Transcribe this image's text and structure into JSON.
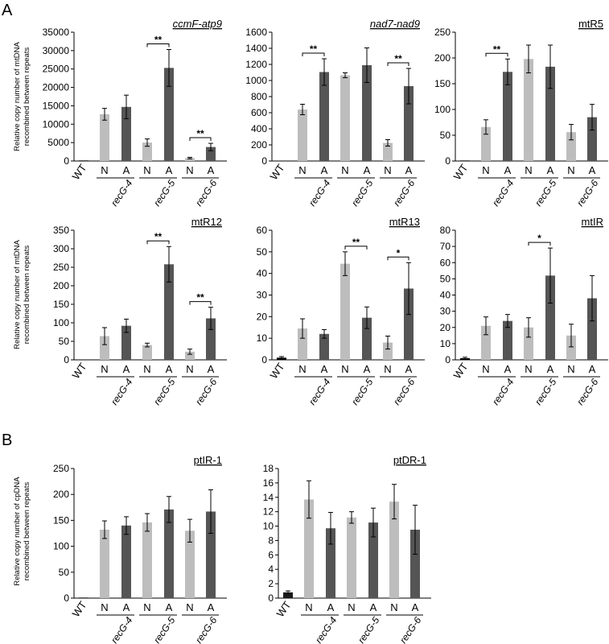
{
  "figure": {
    "panel_labels": [
      "A",
      "B"
    ],
    "ylabels": {
      "mt": [
        "Relative copy number of mtDNA",
        "recombined between repeats"
      ],
      "cp": [
        "Relative copy number of cpDNA",
        "recombined between repeats"
      ]
    },
    "colors": {
      "wt": "#000000",
      "wt_dark": "#1a1a1a",
      "n": "#bdbdbd",
      "a": "#555555"
    }
  },
  "chart_data": [
    {
      "type": "bar",
      "title": "ccmF-atp9",
      "title_italic": true,
      "categories": [
        "WT",
        "N",
        "A",
        "N",
        "A",
        "N",
        "A"
      ],
      "groups": [
        "recG-4",
        "recG-5",
        "recG-6"
      ],
      "values": [
        150,
        12700,
        14700,
        5000,
        25300,
        800,
        3800
      ],
      "errors": [
        0,
        1600,
        3200,
        1000,
        5000,
        200,
        1000
      ],
      "ylim": [
        0,
        35000
      ],
      "yticks": [
        0,
        5000,
        10000,
        15000,
        20000,
        25000,
        30000,
        35000
      ],
      "significance": [
        {
          "from": 3,
          "to": 4,
          "label": "**"
        },
        {
          "from": 5,
          "to": 6,
          "label": "**"
        }
      ]
    },
    {
      "type": "bar",
      "title": "nad7-nad9",
      "title_italic": true,
      "categories": [
        "WT",
        "N",
        "A",
        "N",
        "A",
        "N",
        "A"
      ],
      "groups": [
        "recG-4",
        "recG-5",
        "recG-6"
      ],
      "values": [
        5,
        640,
        1105,
        1065,
        1190,
        225,
        930
      ],
      "errors": [
        0,
        65,
        165,
        30,
        215,
        40,
        220
      ],
      "ylim": [
        0,
        1600
      ],
      "yticks": [
        0,
        200,
        400,
        600,
        800,
        1000,
        1200,
        1400,
        1600
      ],
      "significance": [
        {
          "from": 1,
          "to": 2,
          "label": "**"
        },
        {
          "from": 5,
          "to": 6,
          "label": "**"
        }
      ]
    },
    {
      "type": "bar",
      "title": "mtR5",
      "title_italic": false,
      "categories": [
        "WT",
        "N",
        "A",
        "N",
        "A",
        "N",
        "A"
      ],
      "groups": [
        "recG-4",
        "recG-5",
        "recG-6"
      ],
      "values": [
        1,
        66,
        173,
        198,
        183,
        56,
        85
      ],
      "errors": [
        0,
        14,
        25,
        27,
        42,
        15,
        25
      ],
      "ylim": [
        0,
        250
      ],
      "yticks": [
        0,
        50,
        100,
        150,
        200,
        250
      ],
      "significance": [
        {
          "from": 1,
          "to": 2,
          "label": "**"
        }
      ]
    },
    {
      "type": "bar",
      "title": "mtR12",
      "title_italic": false,
      "categories": [
        "WT",
        "N",
        "A",
        "N",
        "A",
        "N",
        "A"
      ],
      "groups": [
        "recG-4",
        "recG-5",
        "recG-6"
      ],
      "values": [
        1,
        64,
        92,
        40,
        258,
        22,
        112
      ],
      "errors": [
        0,
        23,
        18,
        5,
        48,
        7,
        30
      ],
      "ylim": [
        0,
        350
      ],
      "yticks": [
        0,
        50,
        100,
        150,
        200,
        250,
        300,
        350
      ],
      "significance": [
        {
          "from": 3,
          "to": 4,
          "label": "**"
        },
        {
          "from": 5,
          "to": 6,
          "label": "**"
        }
      ]
    },
    {
      "type": "bar",
      "title": "mtR13",
      "title_italic": false,
      "categories": [
        "WT",
        "N",
        "A",
        "N",
        "A",
        "N",
        "A"
      ],
      "groups": [
        "recG-4",
        "recG-5",
        "recG-6"
      ],
      "values": [
        1,
        14.5,
        12,
        44.5,
        19.5,
        8,
        33
      ],
      "errors": [
        0.5,
        4.5,
        2,
        5.5,
        5,
        3,
        12
      ],
      "ylim": [
        0,
        60
      ],
      "yticks": [
        0,
        10,
        20,
        30,
        40,
        50,
        60
      ],
      "significance": [
        {
          "from": 3,
          "to": 4,
          "label": "**"
        },
        {
          "from": 5,
          "to": 6,
          "label": "*"
        }
      ]
    },
    {
      "type": "bar",
      "title": "mtIR",
      "title_italic": false,
      "categories": [
        "WT",
        "N",
        "A",
        "N",
        "A",
        "N",
        "A"
      ],
      "groups": [
        "recG-4",
        "recG-5",
        "recG-6"
      ],
      "values": [
        1,
        21,
        24,
        20,
        52,
        15,
        38
      ],
      "errors": [
        0.6,
        5.5,
        4,
        6,
        17,
        7,
        14
      ],
      "ylim": [
        0,
        80
      ],
      "yticks": [
        0,
        10,
        20,
        30,
        40,
        50,
        60,
        70,
        80
      ],
      "significance": [
        {
          "from": 3,
          "to": 4,
          "label": "*"
        }
      ]
    },
    {
      "type": "bar",
      "title": "ptIR-1",
      "title_italic": false,
      "categories": [
        "WT",
        "N",
        "A",
        "N",
        "A",
        "N",
        "A"
      ],
      "groups": [
        "recG-4",
        "recG-5",
        "recG-6"
      ],
      "values": [
        1,
        132,
        140,
        146,
        171,
        130,
        167
      ],
      "errors": [
        0,
        17,
        17,
        17,
        25,
        22,
        42
      ],
      "ylim": [
        0,
        250
      ],
      "yticks": [
        0,
        50,
        100,
        150,
        200,
        250
      ],
      "significance": []
    },
    {
      "type": "bar",
      "title": "ptDR-1",
      "title_italic": false,
      "categories": [
        "WT",
        "N",
        "A",
        "N",
        "A",
        "N",
        "A"
      ],
      "groups": [
        "recG-4",
        "recG-5",
        "recG-6"
      ],
      "values": [
        0.8,
        13.7,
        9.7,
        11.2,
        10.5,
        13.4,
        9.5
      ],
      "errors": [
        0.2,
        2.6,
        2.2,
        0.8,
        2,
        2.4,
        3.4
      ],
      "ylim": [
        0,
        18
      ],
      "yticks": [
        0,
        2,
        4,
        6,
        8,
        10,
        12,
        14,
        16,
        18
      ],
      "significance": []
    }
  ]
}
